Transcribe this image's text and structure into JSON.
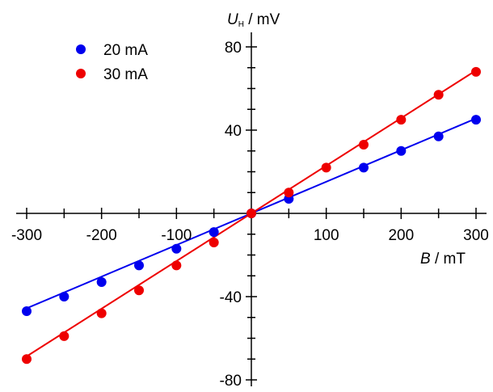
{
  "chart_data": {
    "type": "scatter",
    "x_axis": {
      "label_symbol": "B",
      "label_unit": " / mT",
      "range": [
        -300,
        300
      ],
      "ticks": [
        -300,
        -200,
        -100,
        100,
        200,
        300
      ],
      "tick_labels": [
        "-300",
        "-200",
        "-100",
        "100",
        "200",
        "300"
      ]
    },
    "y_axis": {
      "label_symbol": "U",
      "label_subscript": "H",
      "label_unit": " / mV",
      "range": [
        -80,
        80
      ],
      "ticks": [
        -80,
        -40,
        40,
        80
      ],
      "tick_labels": [
        "-80",
        "-40",
        "40",
        "80"
      ]
    },
    "grid": false,
    "legend_position": "top-left",
    "series": [
      {
        "name": "20 mA",
        "color": "#0000ee",
        "points": [
          [
            -300,
            -47
          ],
          [
            -250,
            -40
          ],
          [
            -200,
            -33
          ],
          [
            -150,
            -25
          ],
          [
            -100,
            -17
          ],
          [
            -50,
            -9
          ],
          [
            0,
            0
          ],
          [
            50,
            7
          ],
          [
            150,
            22
          ],
          [
            200,
            30
          ],
          [
            250,
            37
          ],
          [
            300,
            45
          ]
        ],
        "fit": {
          "slope": 0.152,
          "intercept": 0
        }
      },
      {
        "name": "30 mA",
        "color": "#ee0000",
        "points": [
          [
            -300,
            -70
          ],
          [
            -250,
            -59
          ],
          [
            -200,
            -48
          ],
          [
            -150,
            -37
          ],
          [
            -100,
            -25
          ],
          [
            -50,
            -14
          ],
          [
            0,
            0
          ],
          [
            50,
            10
          ],
          [
            100,
            22
          ],
          [
            150,
            33
          ],
          [
            200,
            45
          ],
          [
            250,
            57
          ],
          [
            300,
            68
          ]
        ],
        "fit": {
          "slope": 0.229,
          "intercept": 0
        }
      }
    ]
  }
}
